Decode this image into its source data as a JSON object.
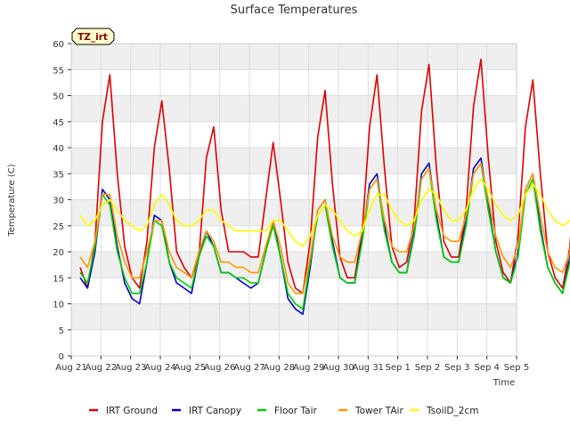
{
  "chart_data": {
    "type": "line",
    "title": "Surface Temperatures",
    "xlabel": "Time",
    "ylabel": "Temperature (C)",
    "ylim": [
      0,
      60
    ],
    "yticks": [
      0,
      5,
      10,
      15,
      20,
      25,
      30,
      35,
      40,
      45,
      50,
      55,
      60
    ],
    "xlim": [
      0,
      15
    ],
    "xticks": [
      {
        "x": 0,
        "label": "Aug 21"
      },
      {
        "x": 1,
        "label": "Aug 22"
      },
      {
        "x": 2,
        "label": "Aug 23"
      },
      {
        "x": 3,
        "label": "Aug 24"
      },
      {
        "x": 4,
        "label": "Aug 25"
      },
      {
        "x": 5,
        "label": "Aug 26"
      },
      {
        "x": 6,
        "label": "Aug 27"
      },
      {
        "x": 7,
        "label": "Aug 28"
      },
      {
        "x": 8,
        "label": "Aug 29"
      },
      {
        "x": 9,
        "label": "Aug 30"
      },
      {
        "x": 10,
        "label": "Aug 31"
      },
      {
        "x": 11,
        "label": "Sep 1"
      },
      {
        "x": 12,
        "label": "Sep 2"
      },
      {
        "x": 13,
        "label": "Sep 3"
      },
      {
        "x": 14,
        "label": "Sep 4"
      },
      {
        "x": 15,
        "label": "Sep 5"
      }
    ],
    "grid": true,
    "banded_background": true,
    "legend_position": "bottom",
    "annotation": {
      "label": "TZ_irt",
      "background": "#ffffcc",
      "border": "#000000",
      "text_color": "#8b0000"
    },
    "x_start": 0.3,
    "x_step": 0.25,
    "series": [
      {
        "name": "IRT Ground",
        "color": "#dd0000",
        "values": [
          17,
          13,
          22,
          45,
          54,
          35,
          21,
          15,
          13,
          22,
          40,
          49,
          36,
          20,
          17,
          15,
          19,
          38,
          44,
          28,
          20,
          20,
          20,
          19,
          19,
          30,
          41,
          30,
          18,
          13,
          12,
          22,
          42,
          51,
          33,
          19,
          15,
          15,
          24,
          44,
          54,
          36,
          21,
          17,
          18,
          26,
          47,
          56,
          36,
          22,
          19,
          19,
          28,
          48,
          57,
          38,
          22,
          16,
          14,
          23,
          44,
          53,
          35,
          20,
          15,
          13,
          21,
          44,
          54,
          36,
          21,
          16,
          15,
          23,
          45,
          55,
          37,
          21,
          17,
          14,
          22,
          45,
          53,
          35,
          20,
          16,
          12,
          20,
          44,
          52,
          34,
          19,
          15,
          14,
          23,
          46,
          56,
          37,
          21
        ]
      },
      {
        "name": "IRT Canopy",
        "color": "#0000cc",
        "values": [
          15,
          13,
          20,
          32,
          30,
          21,
          14,
          11,
          10,
          18,
          27,
          26,
          18,
          14,
          13,
          12,
          19,
          24,
          21,
          16,
          16,
          15,
          14,
          13,
          14,
          20,
          26,
          19,
          11,
          9,
          8,
          17,
          28,
          30,
          22,
          15,
          14,
          14,
          23,
          33,
          35,
          25,
          18,
          16,
          16,
          24,
          35,
          37,
          27,
          19,
          18,
          18,
          26,
          36,
          38,
          29,
          20,
          15,
          14,
          20,
          32,
          35,
          25,
          17,
          14,
          12,
          19,
          33,
          36,
          26,
          18,
          14,
          13,
          21,
          33,
          36,
          25,
          16,
          14,
          12,
          17,
          31,
          33,
          23,
          15,
          12,
          11,
          18,
          30,
          32,
          22,
          14,
          12,
          11,
          21,
          35,
          39,
          30,
          20
        ]
      },
      {
        "name": "Floor Tair",
        "color": "#00cc00",
        "values": [
          16,
          14,
          21,
          31,
          29,
          20,
          15,
          12,
          12,
          18,
          26,
          25,
          18,
          15,
          14,
          13,
          19,
          23,
          21,
          16,
          16,
          15,
          15,
          14,
          14,
          20,
          25,
          19,
          12,
          10,
          9,
          18,
          27,
          29,
          21,
          15,
          14,
          14,
          22,
          32,
          34,
          24,
          18,
          16,
          16,
          23,
          34,
          36,
          26,
          19,
          18,
          18,
          25,
          35,
          37,
          28,
          20,
          15,
          14,
          19,
          31,
          34,
          24,
          17,
          14,
          12,
          18,
          32,
          35,
          25,
          18,
          14,
          13,
          20,
          32,
          35,
          24,
          16,
          14,
          12,
          17,
          30,
          32,
          22,
          15,
          12,
          11,
          18,
          29,
          31,
          21,
          14,
          12,
          11,
          20,
          34,
          37,
          29,
          20
        ]
      },
      {
        "name": "Tower TAir",
        "color": "#ff9900",
        "values": [
          19,
          17,
          22,
          31,
          31,
          23,
          18,
          15,
          15,
          20,
          26,
          26,
          20,
          17,
          16,
          15,
          20,
          24,
          22,
          18,
          18,
          17,
          17,
          16,
          16,
          21,
          26,
          21,
          14,
          12,
          12,
          19,
          28,
          30,
          23,
          19,
          18,
          18,
          24,
          32,
          34,
          26,
          21,
          20,
          20,
          25,
          34,
          36,
          28,
          23,
          22,
          22,
          27,
          35,
          37,
          30,
          23,
          19,
          17,
          21,
          32,
          35,
          27,
          20,
          17,
          16,
          20,
          33,
          35,
          27,
          20,
          18,
          17,
          22,
          33,
          35,
          27,
          20,
          18,
          16,
          20,
          31,
          33,
          26,
          18,
          16,
          15,
          20,
          30,
          32,
          24,
          19,
          17,
          16,
          22,
          34,
          37,
          31,
          24
        ]
      },
      {
        "name": "TsoilD_2cm",
        "color": "#ffff00",
        "values": [
          27,
          25,
          26,
          29,
          30,
          28,
          26,
          25,
          24,
          25,
          29,
          31,
          29,
          26,
          25,
          25,
          26,
          28,
          28,
          26,
          25,
          24,
          24,
          24,
          24,
          24,
          26,
          26,
          24,
          22,
          21,
          23,
          27,
          29,
          28,
          26,
          24,
          23,
          24,
          28,
          31,
          31,
          28,
          26,
          25,
          26,
          30,
          32,
          31,
          28,
          26,
          26,
          28,
          32,
          34,
          32,
          29,
          27,
          26,
          27,
          31,
          33,
          31,
          28,
          26,
          25,
          26,
          30,
          32,
          31,
          28,
          26,
          25,
          26,
          30,
          32,
          31,
          28,
          26,
          25,
          25,
          29,
          32,
          31,
          28,
          26,
          24,
          25,
          29,
          31,
          30,
          28,
          26,
          24,
          25,
          29,
          32,
          31,
          27
        ]
      }
    ]
  }
}
